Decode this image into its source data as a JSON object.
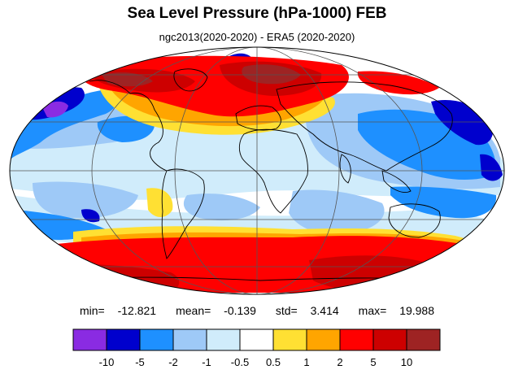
{
  "title": "Sea Level Pressure (hPa-1000) FEB",
  "subtitle": "ngc2013(2020-2020) - ERA5 (2020-2020)",
  "stats": {
    "min_label": "min=",
    "min": "-12.821",
    "mean_label": "mean=",
    "mean": "-0.139",
    "std_label": "std=",
    "std": "3.414",
    "max_label": "max=",
    "max": "19.988"
  },
  "colorbar": {
    "colors": [
      "#8a2be2",
      "#0000cd",
      "#1e90ff",
      "#9ec9f7",
      "#d0ecfb",
      "#ffffff",
      "#ffe033",
      "#ffa500",
      "#ff0000",
      "#cd0000",
      "#9e2323"
    ],
    "tick_labels": [
      "-10",
      "-5",
      "-2",
      "-1",
      "-0.5",
      "0.5",
      "1",
      "2",
      "5",
      "10"
    ]
  },
  "map": {
    "projection": "Mollweide",
    "colors": {
      "red": "#ff0000",
      "dark_red": "#cd0000",
      "maroon": "#9e2323",
      "orange": "#ffa500",
      "yellow": "#ffe033",
      "white": "#ffffff",
      "pale_blue": "#d0ecfb",
      "light_blue": "#9ec9f7",
      "blue": "#1e90ff",
      "dark_blue": "#0000cd",
      "purple": "#8a2be2",
      "coast": "#000000"
    }
  }
}
